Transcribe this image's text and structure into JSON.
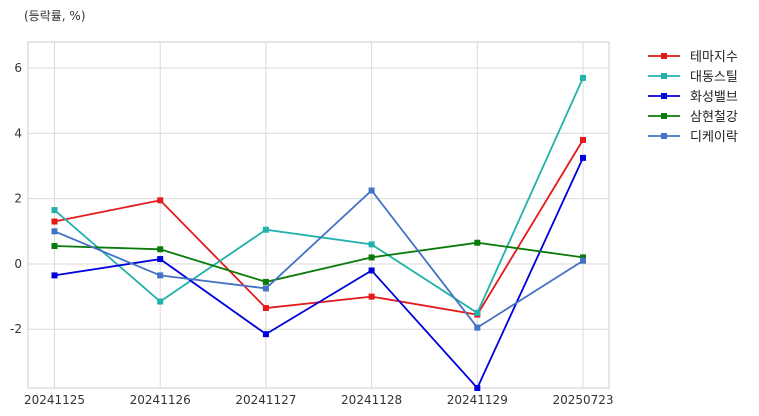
{
  "chart_data": {
    "type": "line",
    "unit_label": "(등락률, %)",
    "categories": [
      "20241125",
      "20241126",
      "20241127",
      "20241128",
      "20241129",
      "20250723"
    ],
    "ylim": [
      -3.8,
      6.8
    ],
    "yticks": [
      -2,
      0,
      2,
      4,
      6
    ],
    "grid": true,
    "legend_position": "top-right outside",
    "series": [
      {
        "name": "테마지수",
        "color": "#e31a1c",
        "values": [
          1.3,
          1.95,
          -1.35,
          -1.0,
          -1.55,
          3.8
        ]
      },
      {
        "name": "대동스틸",
        "color": "#20b2aa",
        "values": [
          1.65,
          -1.15,
          1.05,
          0.6,
          -1.5,
          5.7
        ]
      },
      {
        "name": "화성밸브",
        "color": "#0000dd",
        "values": [
          -0.35,
          0.15,
          -2.15,
          -0.2,
          -3.8,
          3.25
        ]
      },
      {
        "name": "삼현철강",
        "color": "#0a7a0a",
        "values": [
          0.55,
          0.45,
          -0.55,
          0.2,
          0.65,
          0.2
        ]
      },
      {
        "name": "디케이락",
        "color": "#4472c4",
        "values": [
          1.0,
          -0.35,
          -0.75,
          2.25,
          -1.95,
          0.1
        ]
      }
    ]
  }
}
